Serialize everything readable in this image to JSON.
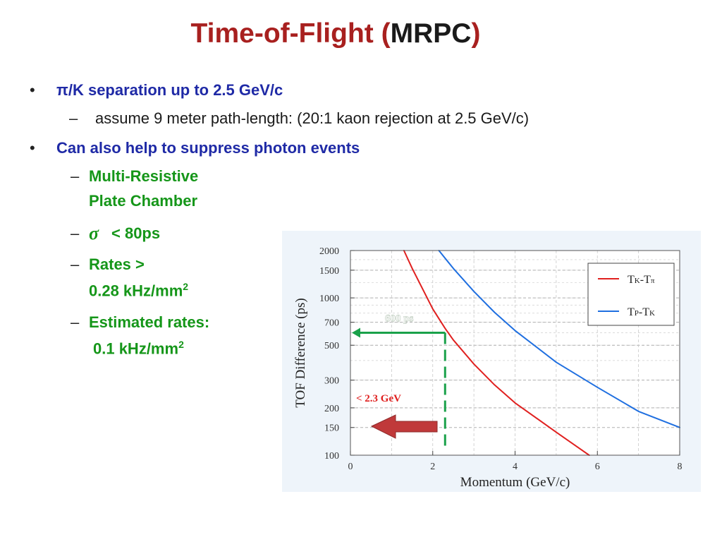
{
  "slide": {
    "title_main": "Time-of-Flight (",
    "title_accent": "MRPC",
    "title_close": ")"
  },
  "bullets": {
    "b1": "π/K separation up to 2.5 GeV/c",
    "b1_sub": "assume 9 meter path-length:  (20:1 kaon rejection at 2.5 GeV/c)",
    "b2": "Can also help to suppress photon events",
    "s1_line1": "Multi-Resistive",
    "s1_line2": "Plate Chamber",
    "s2_symbol": "σ",
    "s2_text": "< 80ps",
    "s3_line1": "Rates >",
    "s3_line2": "0.28 kHz/mm",
    "s3_sup": "2",
    "s4_line1": "Estimated rates:",
    "s4_line2": "0.1 kHz/mm",
    "s4_sup": "2",
    "dash": "–",
    "dot": "•"
  },
  "colors": {
    "title_red": "#a8201f",
    "blue_text": "#1f2aa6",
    "green_text": "#159619",
    "curve_red": "#e0201f",
    "curve_blue": "#1f6fe0",
    "annotation_green": "#1aa14a",
    "arrow_red": "#c0393a"
  },
  "chart_data": {
    "type": "line",
    "xlabel": "Momentum (GeV/c)",
    "ylabel": "TOF Difference (ps)",
    "xlim": [
      0,
      8
    ],
    "ylim": [
      100,
      2000
    ],
    "yscale": "log",
    "grid": true,
    "legend_position": "top-right",
    "x_ticks": [
      "0",
      "2",
      "4",
      "6",
      "8"
    ],
    "y_ticks": [
      100,
      150,
      200,
      300,
      500,
      700,
      1000,
      1500,
      2000
    ],
    "y_tick_labels": [
      "100",
      "150",
      "200",
      "300",
      "500",
      "700",
      "1000",
      "1500",
      "2000"
    ],
    "legend_entries": [
      {
        "main": "T",
        "sub1": "K",
        "mid": "-T",
        "sub2": "π"
      },
      {
        "main": "T",
        "sub1": "P",
        "mid": "-T",
        "sub2": "K"
      }
    ],
    "series": [
      {
        "name": "TK-Tπ",
        "color": "#e0201f",
        "x": [
          1.3,
          1.5,
          2.0,
          2.3,
          2.5,
          3.0,
          3.5,
          4.0,
          5.0,
          5.8
        ],
        "y": [
          2000,
          1540,
          850,
          640,
          540,
          380,
          280,
          215,
          140,
          100
        ]
      },
      {
        "name": "TP-TK",
        "color": "#1f6fe0",
        "x": [
          2.15,
          2.5,
          3.0,
          3.5,
          4.0,
          5.0,
          6.0,
          7.0,
          8.0
        ],
        "y": [
          2000,
          1540,
          1100,
          810,
          620,
          390,
          270,
          190,
          150
        ]
      }
    ],
    "annotations": {
      "ps_label": "600 ps",
      "ps_value": 600,
      "gev_label": "< 2.3 GeV",
      "gev_value": 2.3
    }
  }
}
